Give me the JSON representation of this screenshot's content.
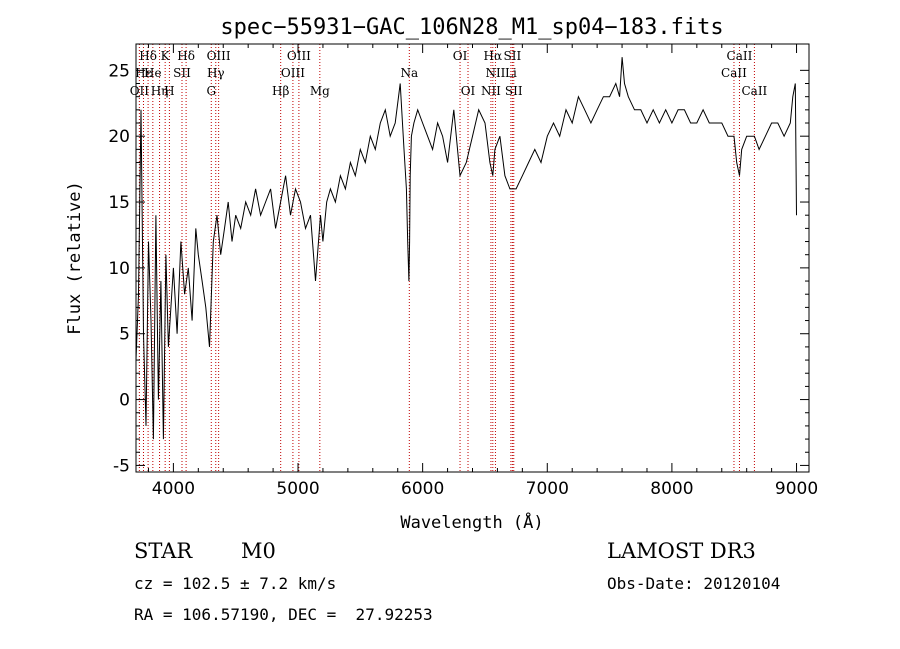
{
  "chart_data": {
    "type": "line",
    "title": "spec−55931−GAC_106N28_M1_sp04−183.fits",
    "xlabel": "Wavelength (Å)",
    "ylabel": "Flux (relative)",
    "xlim": [
      3700,
      9100
    ],
    "ylim": [
      -5.5,
      27
    ],
    "xticks": [
      4000,
      5000,
      6000,
      7000,
      8000,
      9000
    ],
    "yticks": [
      -5,
      0,
      5,
      10,
      15,
      20,
      25
    ],
    "grid": false,
    "series": [
      {
        "color": "#000000",
        "x": [
          3700,
          3720,
          3740,
          3760,
          3780,
          3800,
          3820,
          3840,
          3860,
          3880,
          3900,
          3920,
          3940,
          3960,
          3980,
          4000,
          4030,
          4060,
          4090,
          4120,
          4150,
          4180,
          4200,
          4230,
          4260,
          4290,
          4320,
          4350,
          4380,
          4410,
          4440,
          4470,
          4500,
          4540,
          4580,
          4620,
          4660,
          4700,
          4740,
          4780,
          4820,
          4860,
          4900,
          4940,
          4980,
          5020,
          5060,
          5100,
          5140,
          5180,
          5200,
          5230,
          5260,
          5300,
          5340,
          5380,
          5420,
          5460,
          5500,
          5540,
          5580,
          5620,
          5660,
          5700,
          5740,
          5780,
          5820,
          5850,
          5870,
          5880,
          5890,
          5895,
          5900,
          5910,
          5930,
          5960,
          6000,
          6040,
          6080,
          6120,
          6160,
          6200,
          6250,
          6300,
          6350,
          6400,
          6450,
          6500,
          6540,
          6563,
          6580,
          6620,
          6660,
          6700,
          6750,
          6800,
          6850,
          6900,
          6950,
          7000,
          7050,
          7100,
          7150,
          7200,
          7250,
          7300,
          7350,
          7400,
          7450,
          7500,
          7550,
          7580,
          7600,
          7620,
          7650,
          7700,
          7750,
          7800,
          7850,
          7900,
          7950,
          8000,
          8050,
          8100,
          8150,
          8200,
          8250,
          8300,
          8350,
          8400,
          8450,
          8498,
          8520,
          8542,
          8560,
          8600,
          8640,
          8662,
          8700,
          8750,
          8800,
          8850,
          8900,
          8950,
          8970,
          8990,
          9000
        ],
        "values": [
          3,
          8,
          22,
          5,
          -2,
          12,
          6,
          -3,
          14,
          0,
          9,
          -3,
          11,
          4,
          7,
          10,
          5,
          12,
          8,
          10,
          6,
          13,
          11,
          9,
          7,
          4,
          12,
          14,
          11,
          13,
          15,
          12,
          14,
          13,
          15,
          14,
          16,
          14,
          15,
          16,
          13,
          15,
          17,
          14,
          16,
          15,
          13,
          14,
          9,
          14,
          12,
          15,
          16,
          15,
          17,
          16,
          18,
          17,
          19,
          18,
          20,
          19,
          21,
          22,
          20,
          21,
          24,
          19,
          16,
          12,
          9,
          12,
          17,
          20,
          21,
          22,
          21,
          20,
          19,
          21,
          20,
          18,
          22,
          17,
          18,
          20,
          22,
          21,
          18,
          17,
          19,
          20,
          17,
          16,
          16,
          17,
          18,
          19,
          18,
          20,
          21,
          20,
          22,
          21,
          23,
          22,
          21,
          22,
          23,
          23,
          24,
          23,
          26,
          24,
          23,
          22,
          22,
          21,
          22,
          21,
          22,
          21,
          22,
          22,
          21,
          21,
          22,
          21,
          21,
          21,
          20,
          20,
          18,
          17,
          19,
          20,
          20,
          20,
          19,
          20,
          21,
          21,
          20,
          21,
          23,
          24,
          14
        ]
      }
    ],
    "lines": [
      {
        "label": "Hδ",
        "x": 3797,
        "row": 0
      },
      {
        "label": "K",
        "x": 3934,
        "row": 0
      },
      {
        "label": "Hδ",
        "x": 4102,
        "row": 0
      },
      {
        "label": "OIII",
        "x": 4363,
        "row": 0
      },
      {
        "label": "OIII",
        "x": 5007,
        "row": 0
      },
      {
        "label": "OI",
        "x": 6300,
        "row": 0
      },
      {
        "label": "Hα",
        "x": 6563,
        "row": 0
      },
      {
        "label": "SII",
        "x": 6720,
        "row": 0
      },
      {
        "label": "CaII",
        "x": 8542,
        "row": 0
      },
      {
        "label": "Hε",
        "x": 3760,
        "row": 1
      },
      {
        "label": "He",
        "x": 3835,
        "row": 1
      },
      {
        "label": "SII",
        "x": 4069,
        "row": 1
      },
      {
        "label": "Hγ",
        "x": 4340,
        "row": 1
      },
      {
        "label": "OIII",
        "x": 4959,
        "row": 1
      },
      {
        "label": "Na",
        "x": 5893,
        "row": 1
      },
      {
        "label": "NII",
        "x": 6584,
        "row": 1
      },
      {
        "label": "Li",
        "x": 6708,
        "row": 1
      },
      {
        "label": "CaII",
        "x": 8498,
        "row": 1
      },
      {
        "label": "OII",
        "x": 3727,
        "row": 2
      },
      {
        "label": "Hη",
        "x": 3889,
        "row": 2
      },
      {
        "label": "H",
        "x": 3968,
        "row": 2
      },
      {
        "label": "G",
        "x": 4304,
        "row": 2
      },
      {
        "label": "Hβ",
        "x": 4861,
        "row": 2
      },
      {
        "label": "Mg",
        "x": 5175,
        "row": 2
      },
      {
        "label": "OI",
        "x": 6364,
        "row": 2
      },
      {
        "label": "NII",
        "x": 6548,
        "row": 2
      },
      {
        "label": "SII",
        "x": 6731,
        "row": 2
      },
      {
        "label": "CaII",
        "x": 8662,
        "row": 2
      }
    ]
  },
  "info": {
    "object_class": "STAR",
    "subclass": "M0",
    "survey": "LAMOST DR3",
    "cz": "cz = 102.5 ± 7.2 km/s",
    "obs_date": "Obs-Date: 20120104",
    "coords": "RA = 106.57190, DEC =  27.92253"
  }
}
